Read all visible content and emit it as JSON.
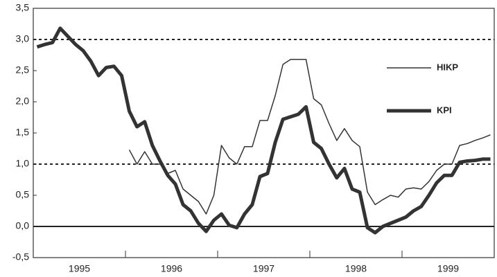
{
  "chart_data": {
    "type": "line",
    "categories": [
      null,
      null,
      null,
      null,
      null,
      null,
      "1995",
      null,
      null,
      null,
      null,
      null,
      null,
      null,
      null,
      null,
      null,
      null,
      "1996",
      null,
      null,
      null,
      null,
      null,
      null,
      null,
      null,
      null,
      null,
      null,
      "1997",
      null,
      null,
      null,
      null,
      null,
      null,
      null,
      null,
      null,
      null,
      null,
      "1998",
      null,
      null,
      null,
      null,
      null,
      null,
      null,
      null,
      null,
      null,
      null,
      "1999",
      null,
      null,
      null,
      null,
      null
    ],
    "series": [
      {
        "name": "HIKP",
        "color": "#333333",
        "width": 1.5,
        "values": [
          null,
          null,
          null,
          null,
          null,
          null,
          null,
          null,
          null,
          null,
          null,
          null,
          1.23,
          1.0,
          1.2,
          1.0,
          1.0,
          0.85,
          0.9,
          0.6,
          0.5,
          0.4,
          0.2,
          0.5,
          1.3,
          1.1,
          1.0,
          1.28,
          1.28,
          1.7,
          1.7,
          2.1,
          2.6,
          2.68,
          2.68,
          2.68,
          2.05,
          1.95,
          1.65,
          1.38,
          1.57,
          1.38,
          1.28,
          0.55,
          0.35,
          0.43,
          0.5,
          0.47,
          0.6,
          0.62,
          0.6,
          0.72,
          0.9,
          1.0,
          1.0,
          1.3,
          1.33,
          1.38,
          1.42,
          1.47
        ]
      },
      {
        "name": "KPI",
        "color": "#333333",
        "width": 5,
        "values": [
          2.88,
          2.92,
          2.95,
          3.18,
          3.05,
          2.92,
          2.82,
          2.65,
          2.42,
          2.55,
          2.57,
          2.42,
          1.85,
          1.6,
          1.68,
          1.3,
          1.05,
          0.82,
          0.68,
          0.35,
          0.25,
          0.05,
          -0.08,
          0.1,
          0.2,
          0.02,
          -0.02,
          0.2,
          0.35,
          0.8,
          0.85,
          1.35,
          1.72,
          1.76,
          1.8,
          1.92,
          1.35,
          1.25,
          1.0,
          0.78,
          0.93,
          0.6,
          0.55,
          -0.02,
          -0.1,
          0.0,
          0.05,
          0.1,
          0.15,
          0.25,
          0.32,
          0.5,
          0.7,
          0.82,
          0.82,
          1.03,
          1.05,
          1.06,
          1.08,
          1.08
        ]
      }
    ],
    "ylim": [
      -0.5,
      3.5
    ],
    "yticks": [
      {
        "value": -0.5,
        "label": "-0,5"
      },
      {
        "value": 0,
        "label": "0,0"
      },
      {
        "value": 0.5,
        "label": "0,5"
      },
      {
        "value": 1,
        "label": "1,0"
      },
      {
        "value": 1.5,
        "label": "1,5"
      },
      {
        "value": 2,
        "label": "2,0"
      },
      {
        "value": 2.5,
        "label": "2,5"
      },
      {
        "value": 3,
        "label": "3,0"
      },
      {
        "value": 3.5,
        "label": "3,5"
      }
    ],
    "hlines": [
      {
        "value": 3,
        "style": "dashed"
      },
      {
        "value": 1,
        "style": "dashed"
      },
      {
        "value": 0,
        "style": "solid"
      }
    ],
    "grid": false
  }
}
